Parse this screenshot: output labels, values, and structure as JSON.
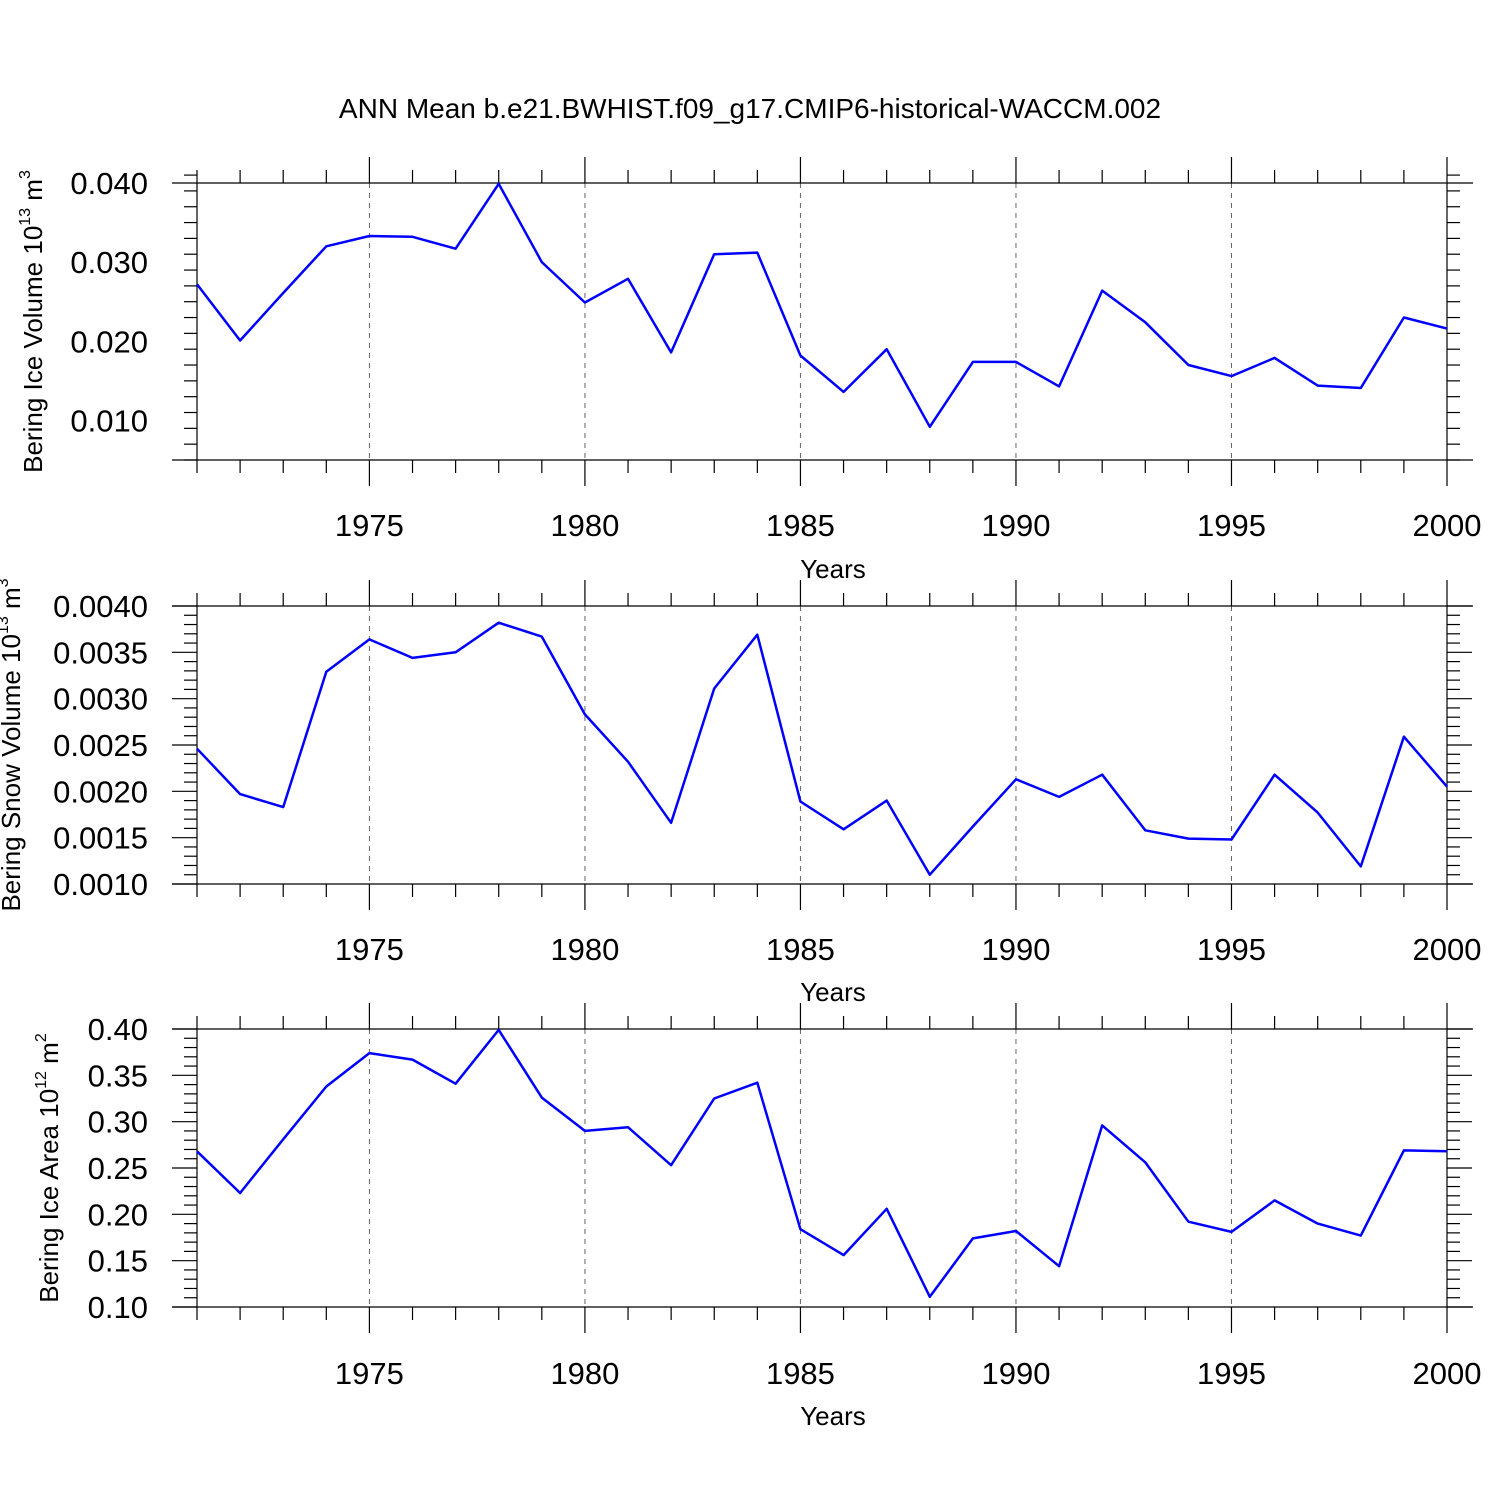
{
  "title": "ANN Mean b.e21.BWHIST.f09_g17.CMIP6-historical-WACCM.002",
  "chart_data": [
    {
      "type": "line",
      "ylabel_main": "Bering Ice Volume 10",
      "ylabel_sup": "13",
      "ylabel_unit": " m",
      "ylabel_unit_sup": "3",
      "xlabel": "Years",
      "xlim": [
        1971,
        2000
      ],
      "ylim": [
        0.005,
        0.04
      ],
      "y_ticks": [
        0.01,
        0.02,
        0.03,
        0.04
      ],
      "y_tick_labels": [
        "0.010",
        "0.020",
        "0.030",
        "0.040"
      ],
      "y_minor_step": 0.002,
      "x_ticks": [
        1975,
        1980,
        1985,
        1990,
        1995,
        2000
      ],
      "x_tick_labels": [
        "1975",
        "1980",
        "1985",
        "1990",
        "1995",
        "2000"
      ],
      "grid": "vertical dashed at major x ticks",
      "x": [
        1971,
        1972,
        1973,
        1974,
        1975,
        1976,
        1977,
        1978,
        1979,
        1980,
        1981,
        1982,
        1983,
        1984,
        1985,
        1986,
        1987,
        1988,
        1989,
        1990,
        1991,
        1992,
        1993,
        1994,
        1995,
        1996,
        1997,
        1998,
        1999,
        2000
      ],
      "values": [
        0.0272,
        0.0201,
        0.0261,
        0.032,
        0.0333,
        0.0332,
        0.0317,
        0.0399,
        0.03,
        0.0249,
        0.0279,
        0.0186,
        0.031,
        0.0312,
        0.0182,
        0.0136,
        0.019,
        0.0092,
        0.0174,
        0.0174,
        0.0143,
        0.0264,
        0.0224,
        0.017,
        0.0156,
        0.0179,
        0.0144,
        0.0141,
        0.023,
        0.0216
      ],
      "color": "#0000ff"
    },
    {
      "type": "line",
      "ylabel_main": "Bering Snow Volume 10",
      "ylabel_sup": "13",
      "ylabel_unit": " m",
      "ylabel_unit_sup": "3",
      "xlabel": "Years",
      "xlim": [
        1971,
        2000
      ],
      "ylim": [
        0.001,
        0.004
      ],
      "y_ticks": [
        0.001,
        0.0015,
        0.002,
        0.0025,
        0.003,
        0.0035,
        0.004
      ],
      "y_tick_labels": [
        "0.0010",
        "0.0015",
        "0.0020",
        "0.0025",
        "0.0030",
        "0.0035",
        "0.0040"
      ],
      "y_minor_step": 0.0001,
      "x_ticks": [
        1975,
        1980,
        1985,
        1990,
        1995,
        2000
      ],
      "x_tick_labels": [
        "1975",
        "1980",
        "1985",
        "1990",
        "1995",
        "2000"
      ],
      "grid": "vertical dashed at major x ticks",
      "x": [
        1971,
        1972,
        1973,
        1974,
        1975,
        1976,
        1977,
        1978,
        1979,
        1980,
        1981,
        1982,
        1983,
        1984,
        1985,
        1986,
        1987,
        1988,
        1989,
        1990,
        1991,
        1992,
        1993,
        1994,
        1995,
        1996,
        1997,
        1998,
        1999,
        2000
      ],
      "values": [
        0.00246,
        0.00197,
        0.00183,
        0.00329,
        0.00364,
        0.00344,
        0.0035,
        0.00382,
        0.00367,
        0.00283,
        0.00232,
        0.00166,
        0.00311,
        0.00369,
        0.00189,
        0.00159,
        0.0019,
        0.0011,
        0.00162,
        0.00213,
        0.00194,
        0.00218,
        0.00158,
        0.00149,
        0.00148,
        0.00218,
        0.00177,
        0.00119,
        0.00259,
        0.00205
      ],
      "color": "#0000ff"
    },
    {
      "type": "line",
      "ylabel_main": "Bering Ice Area 10",
      "ylabel_sup": "12",
      "ylabel_unit": " m",
      "ylabel_unit_sup": "2",
      "xlabel": "Years",
      "xlim": [
        1971,
        2000
      ],
      "ylim": [
        0.1,
        0.4
      ],
      "y_ticks": [
        0.1,
        0.15,
        0.2,
        0.25,
        0.3,
        0.35,
        0.4
      ],
      "y_tick_labels": [
        "0.10",
        "0.15",
        "0.20",
        "0.25",
        "0.30",
        "0.35",
        "0.40"
      ],
      "y_minor_step": 0.01,
      "x_ticks": [
        1975,
        1980,
        1985,
        1990,
        1995,
        2000
      ],
      "x_tick_labels": [
        "1975",
        "1980",
        "1985",
        "1990",
        "1995",
        "2000"
      ],
      "grid": "vertical dashed at major x ticks",
      "x": [
        1971,
        1972,
        1973,
        1974,
        1975,
        1976,
        1977,
        1978,
        1979,
        1980,
        1981,
        1982,
        1983,
        1984,
        1985,
        1986,
        1987,
        1988,
        1989,
        1990,
        1991,
        1992,
        1993,
        1994,
        1995,
        1996,
        1997,
        1998,
        1999,
        2000
      ],
      "values": [
        0.268,
        0.223,
        0.281,
        0.338,
        0.374,
        0.367,
        0.341,
        0.399,
        0.326,
        0.29,
        0.294,
        0.253,
        0.325,
        0.342,
        0.184,
        0.156,
        0.206,
        0.111,
        0.174,
        0.182,
        0.144,
        0.296,
        0.256,
        0.192,
        0.181,
        0.215,
        0.19,
        0.177,
        0.269,
        0.268
      ],
      "color": "#0000ff"
    }
  ]
}
